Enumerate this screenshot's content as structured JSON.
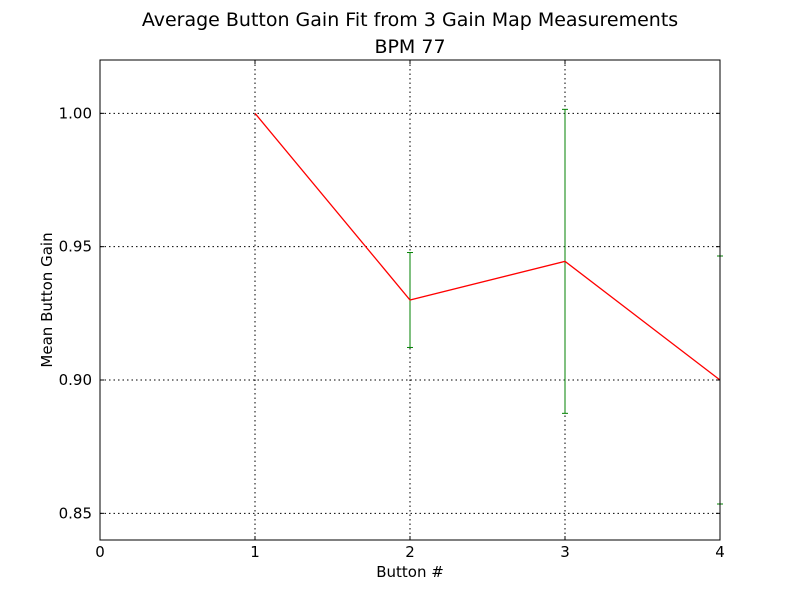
{
  "chart_data": {
    "type": "line",
    "title": "Average Button Gain Fit from 3 Gain Map Measurements",
    "subtitle": "BPM 77",
    "xlabel": "Button #",
    "ylabel": "Mean Button Gain",
    "xlim": [
      0,
      4
    ],
    "ylim": [
      0.84,
      1.02
    ],
    "xticks": [
      0,
      1,
      2,
      3,
      4
    ],
    "xtick_labels": [
      "0",
      "1",
      "2",
      "3",
      "4"
    ],
    "yticks": [
      0.85,
      0.9,
      0.95,
      1.0
    ],
    "ytick_labels": [
      "0.85",
      "0.90",
      "0.95",
      "1.00"
    ],
    "grid": true,
    "series": [
      {
        "x": [
          1,
          2,
          3,
          4
        ],
        "values": [
          1.0,
          0.93,
          0.9445,
          0.9
        ],
        "errors": [
          0,
          0.0178,
          0.057,
          0.0465
        ],
        "line_color": "#ff0000",
        "errorbar_color": "#008000"
      }
    ]
  }
}
